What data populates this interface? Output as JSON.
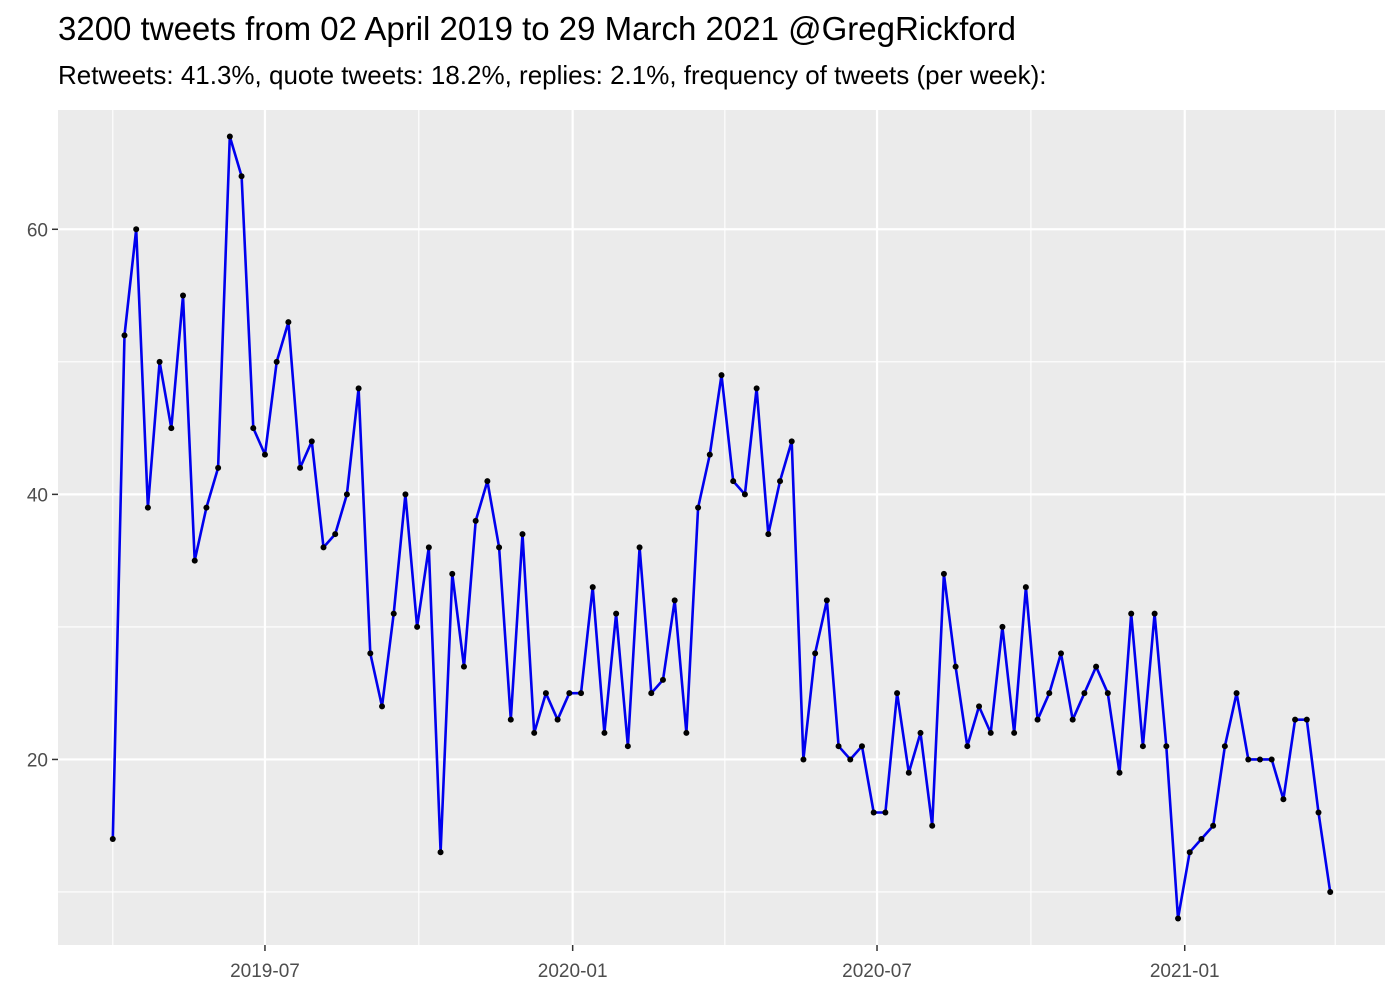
{
  "chart_data": {
    "type": "line",
    "title": "3200 tweets from 02 April 2019 to 29 March 2021 @GregRickford",
    "subtitle": "Retweets: 41.3%, quote tweets: 18.2%, replies: 2.1%, frequency of tweets (per week):",
    "xlabel": "",
    "ylabel": "",
    "x_ticks": [
      "2019-07",
      "2020-01",
      "2020-07",
      "2021-01"
    ],
    "y_ticks": [
      20,
      40,
      60
    ],
    "ylim": [
      6,
      69
    ],
    "grid": true,
    "legend": "none",
    "colors": {
      "line": "#0000ee",
      "points": "#000000",
      "panel": "#ebebeb",
      "grid": "#ffffff",
      "tick_text": "#4d4d4d"
    },
    "series": [
      {
        "x": [
          "2019-04-01",
          "2019-04-08",
          "2019-04-15",
          "2019-04-22",
          "2019-04-29",
          "2019-05-06",
          "2019-05-13",
          "2019-05-20",
          "2019-05-27",
          "2019-06-03",
          "2019-06-10",
          "2019-06-17",
          "2019-06-24",
          "2019-07-01",
          "2019-07-08",
          "2019-07-15",
          "2019-07-22",
          "2019-07-29",
          "2019-08-05",
          "2019-08-12",
          "2019-08-19",
          "2019-08-26",
          "2019-09-02",
          "2019-09-09",
          "2019-09-16",
          "2019-09-23",
          "2019-09-30",
          "2019-10-07",
          "2019-10-14",
          "2019-10-21",
          "2019-10-28",
          "2019-11-04",
          "2019-11-11",
          "2019-11-18",
          "2019-11-25",
          "2019-12-02",
          "2019-12-09",
          "2019-12-16",
          "2019-12-23",
          "2019-12-30",
          "2020-01-06",
          "2020-01-13",
          "2020-01-20",
          "2020-01-27",
          "2020-02-03",
          "2020-02-10",
          "2020-02-17",
          "2020-02-24",
          "2020-03-02",
          "2020-03-09",
          "2020-03-16",
          "2020-03-23",
          "2020-03-30",
          "2020-04-06",
          "2020-04-13",
          "2020-04-20",
          "2020-04-27",
          "2020-05-04",
          "2020-05-11",
          "2020-05-18",
          "2020-05-25",
          "2020-06-01",
          "2020-06-08",
          "2020-06-15",
          "2020-06-22",
          "2020-06-29",
          "2020-07-06",
          "2020-07-13",
          "2020-07-20",
          "2020-07-27",
          "2020-08-03",
          "2020-08-10",
          "2020-08-17",
          "2020-08-24",
          "2020-08-31",
          "2020-09-07",
          "2020-09-14",
          "2020-09-21",
          "2020-09-28",
          "2020-10-05",
          "2020-10-12",
          "2020-10-19",
          "2020-10-26",
          "2020-11-02",
          "2020-11-09",
          "2020-11-16",
          "2020-11-23",
          "2020-11-30",
          "2020-12-07",
          "2020-12-14",
          "2020-12-21",
          "2020-12-28",
          "2021-01-04",
          "2021-01-11",
          "2021-01-18",
          "2021-01-25",
          "2021-02-01",
          "2021-02-08",
          "2021-02-15",
          "2021-02-22",
          "2021-03-01",
          "2021-03-08",
          "2021-03-15",
          "2021-03-22",
          "2021-03-29"
        ],
        "values": [
          14,
          52,
          60,
          39,
          50,
          45,
          55,
          35,
          39,
          42,
          67,
          64,
          45,
          43,
          50,
          53,
          42,
          44,
          36,
          37,
          40,
          48,
          28,
          24,
          31,
          40,
          30,
          36,
          13,
          34,
          27,
          38,
          41,
          36,
          23,
          37,
          22,
          25,
          23,
          25,
          25,
          33,
          22,
          31,
          21,
          36,
          25,
          26,
          32,
          22,
          39,
          43,
          49,
          41,
          40,
          48,
          37,
          41,
          44,
          20,
          28,
          32,
          21,
          20,
          21,
          16,
          16,
          25,
          19,
          22,
          15,
          34,
          27,
          21,
          24,
          22,
          30,
          22,
          33,
          23,
          25,
          28,
          23,
          25,
          27,
          25,
          19,
          31,
          21,
          31,
          21,
          8,
          13,
          14,
          15,
          21,
          25,
          20,
          20,
          20,
          17,
          23,
          23,
          16,
          10
        ]
      }
    ]
  }
}
